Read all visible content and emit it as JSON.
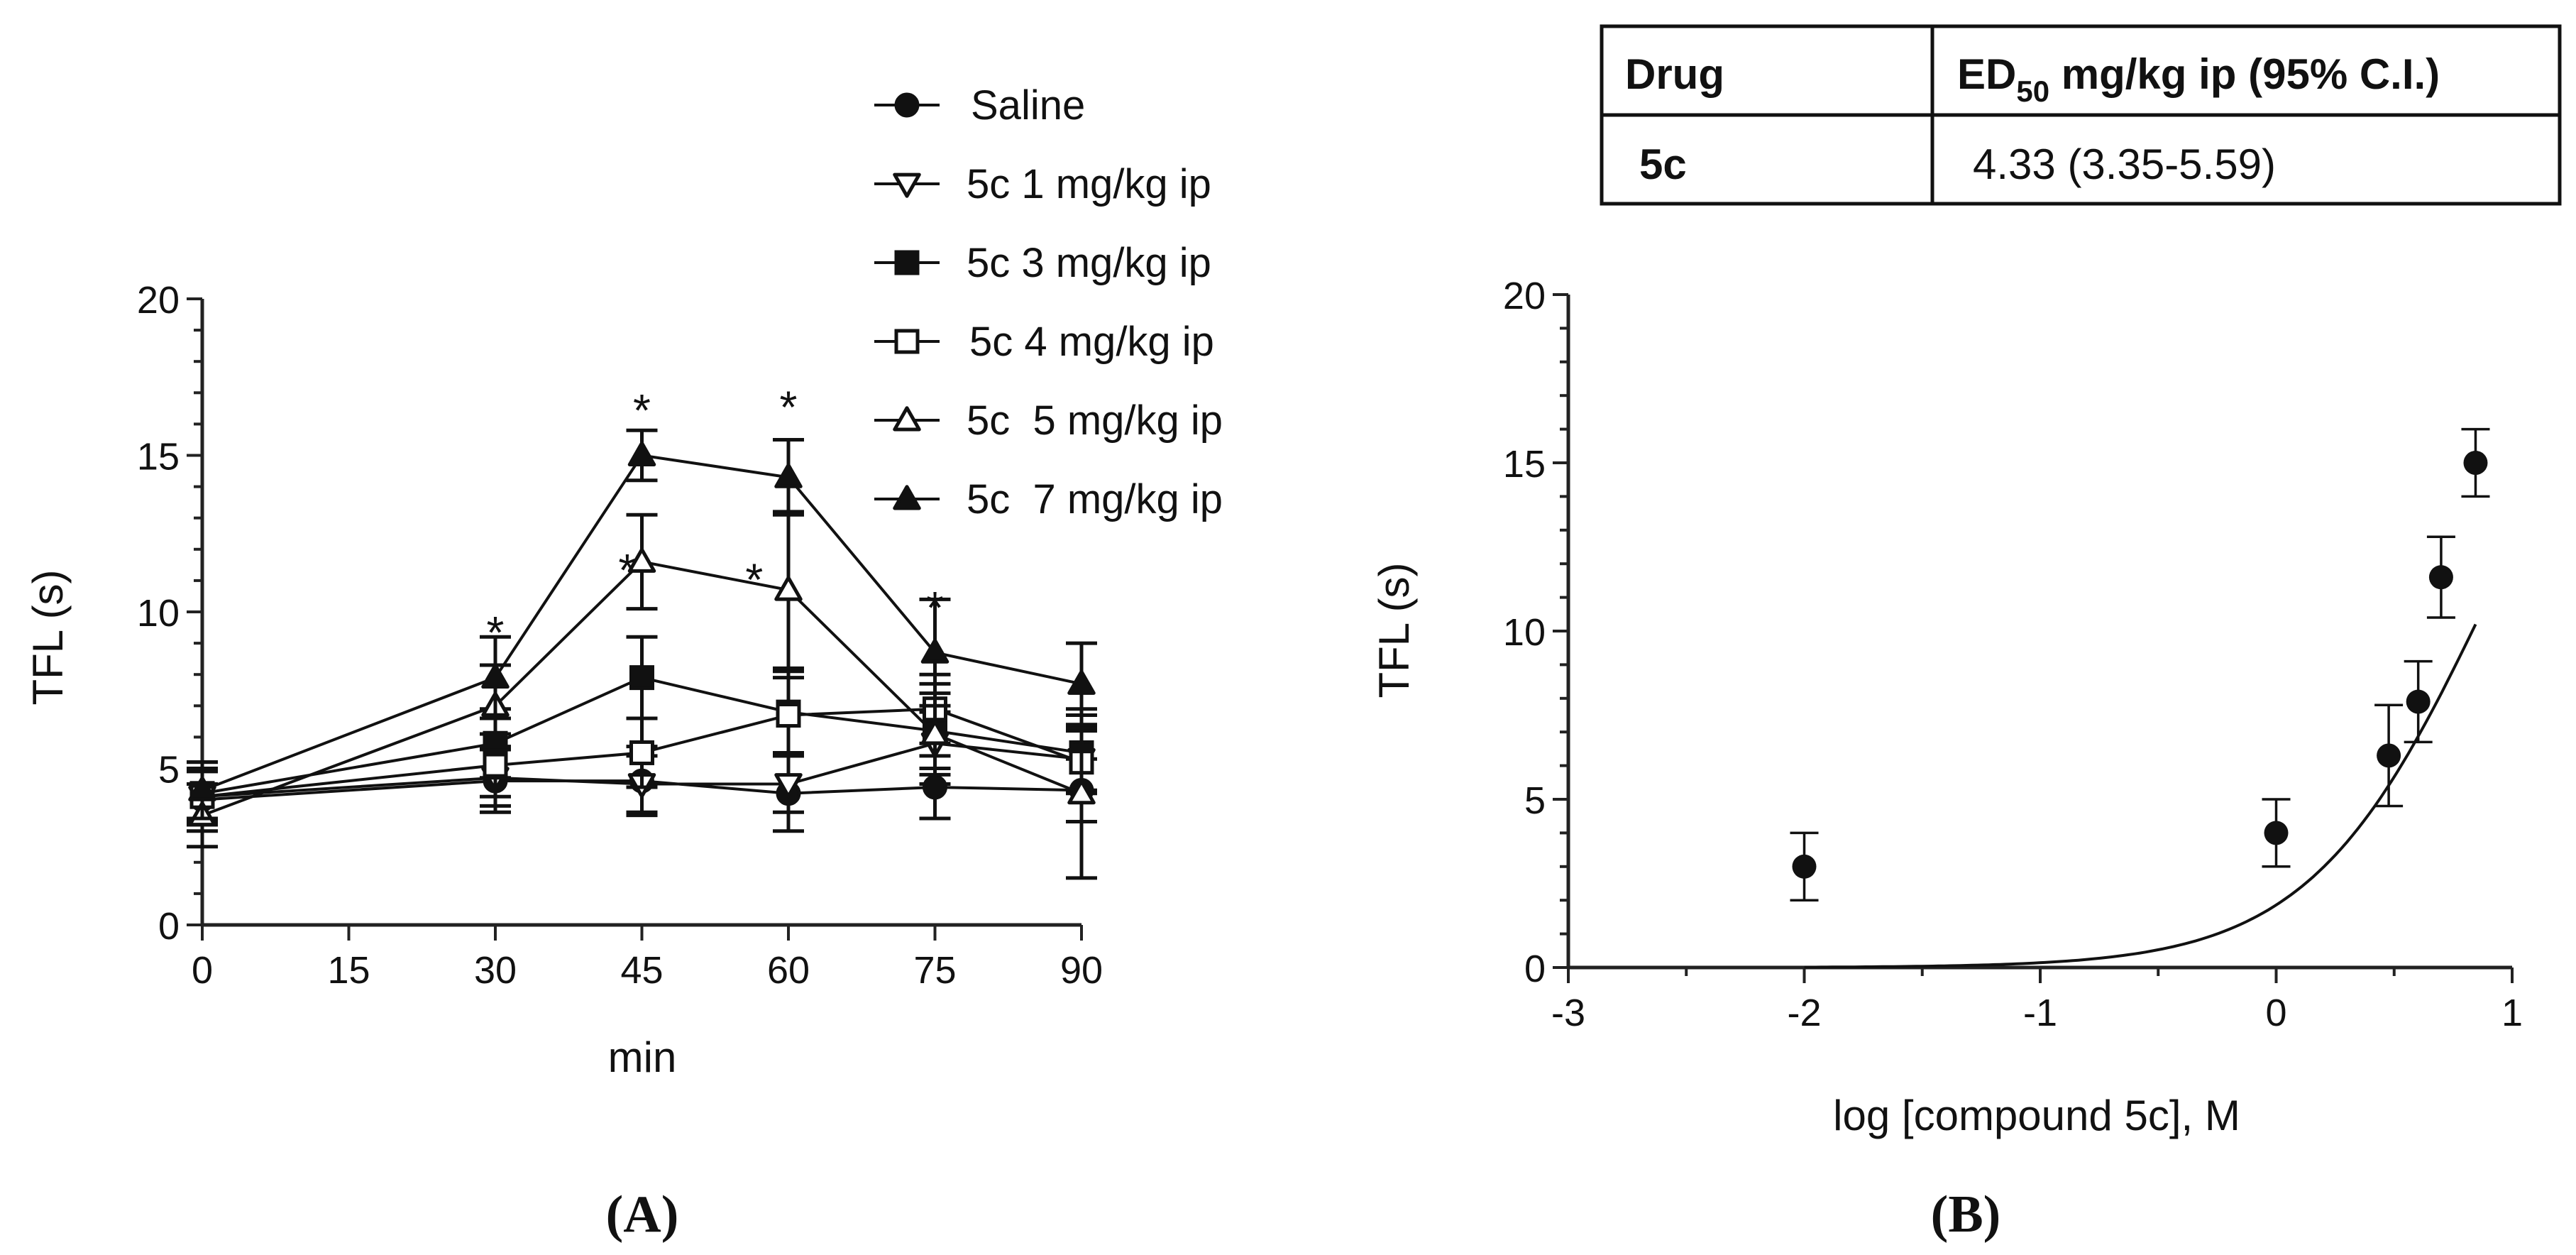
{
  "chart_data": [
    {
      "id": "A",
      "type": "line",
      "panel_label": "(A)",
      "xlabel": "min",
      "ylabel": "TFL (s)",
      "xlim": [
        0,
        90
      ],
      "ylim": [
        0,
        20
      ],
      "xticks": [
        0,
        15,
        30,
        45,
        60,
        75,
        90
      ],
      "yticks": [
        0,
        5,
        10,
        15,
        20
      ],
      "x": [
        0,
        30,
        45,
        60,
        75,
        90
      ],
      "legend_position": "top-right",
      "series": [
        {
          "name": "Saline",
          "marker": "circle-filled",
          "values": [
            4.0,
            4.6,
            4.6,
            4.2,
            4.4,
            4.3
          ],
          "errors": [
            1.0,
            1.0,
            1.1,
            1.2,
            1.0,
            1.0
          ]
        },
        {
          "name": "5c 1 mg/kg ip",
          "marker": "triangle-down-open",
          "values": [
            4.1,
            4.7,
            4.5,
            4.5,
            5.8,
            5.3
          ],
          "errors": [
            0.8,
            0.9,
            0.9,
            0.9,
            1.0,
            1.0
          ]
        },
        {
          "name": "5c 3 mg/kg ip",
          "marker": "square-filled",
          "values": [
            4.2,
            5.8,
            7.9,
            6.8,
            6.2,
            5.5
          ],
          "errors": [
            1.0,
            1.1,
            1.3,
            1.3,
            1.2,
            1.2
          ]
        },
        {
          "name": "5c 4 mg/kg ip",
          "marker": "square-open",
          "values": [
            4.1,
            5.1,
            5.5,
            6.7,
            6.9,
            5.2
          ],
          "errors": [
            0.9,
            1.0,
            1.1,
            1.2,
            1.1,
            1.0
          ]
        },
        {
          "name": "5c  5 mg/kg ip",
          "marker": "triangle-up-open",
          "values": [
            3.5,
            7.0,
            11.6,
            10.7,
            6.1,
            4.2
          ],
          "errors": [
            1.0,
            1.3,
            1.5,
            2.5,
            1.6,
            2.7
          ]
        },
        {
          "name": "5c  7 mg/kg ip",
          "marker": "triangle-up-filled",
          "values": [
            4.3,
            7.9,
            15.0,
            14.3,
            8.7,
            7.7
          ],
          "errors": [
            0.9,
            1.3,
            0.8,
            1.2,
            1.7,
            1.3
          ]
        }
      ],
      "annotations": [
        {
          "text": "*",
          "x": 30,
          "y": 9.7
        },
        {
          "text": "*",
          "x": 45,
          "y": 16.8
        },
        {
          "text": "*",
          "x": 43.5,
          "y": 11.7
        },
        {
          "text": "*",
          "x": 60,
          "y": 16.9
        },
        {
          "text": "*",
          "x": 56.5,
          "y": 11.4
        },
        {
          "text": "*",
          "x": 75,
          "y": 10.5
        }
      ]
    },
    {
      "id": "B",
      "type": "scatter",
      "panel_label": "(B)",
      "xlabel": "log [compound 5c], M",
      "ylabel": "TFL (s)",
      "xlim": [
        -3,
        1
      ],
      "ylim": [
        0,
        20
      ],
      "xticks": [
        -3,
        -2,
        -1,
        0,
        1
      ],
      "yticks": [
        0,
        5,
        10,
        15,
        20
      ],
      "points": {
        "x": [
          -2,
          0,
          0.477,
          0.602,
          0.699,
          0.845
        ],
        "y": [
          3.0,
          4.0,
          6.3,
          7.9,
          11.6,
          15.0
        ],
        "errors": [
          1.0,
          1.0,
          1.5,
          1.2,
          1.2,
          1.0
        ]
      },
      "fit_curve": {
        "model": "sigmoid dose-response",
        "x_range": [
          -2,
          0.845
        ]
      },
      "table": {
        "headers": [
          "Drug",
          "ED",
          "50",
          " mg/kg ip (95% C.I.)"
        ],
        "rows": [
          [
            "5c",
            "4.33 (3.35-5.59)"
          ]
        ]
      }
    }
  ]
}
